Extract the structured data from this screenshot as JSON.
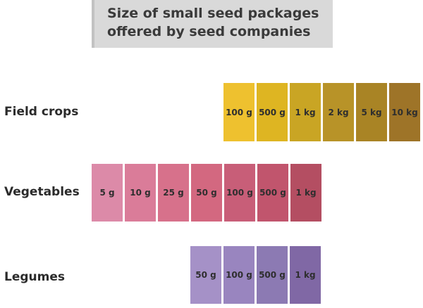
{
  "title": "Size of small seed packages\noffered by seed companies",
  "rows": [
    {
      "label": "Field crops",
      "packages": [
        "100 g",
        "500 g",
        "1 kg",
        "2 kg",
        "5 kg",
        "10 kg"
      ],
      "colors": [
        "#eec12f",
        "#deb522",
        "#c9a524",
        "#b89328",
        "#a98425",
        "#9e7428"
      ]
    },
    {
      "label": "Vegetables",
      "packages": [
        "5 g",
        "10 g",
        "25 g",
        "50 g",
        "100 g",
        "500 g",
        "1 kg"
      ],
      "colors": [
        "#dc8aa8",
        "#da7c99",
        "#d7718b",
        "#d36880",
        "#c85e78",
        "#c1556d",
        "#b44e62"
      ]
    },
    {
      "label": "Legumes",
      "packages": [
        "50 g",
        "100 g",
        "500 g",
        "1 kg"
      ],
      "colors": [
        "#a591c7",
        "#9985bf",
        "#8c7ab3",
        "#8068a5"
      ]
    }
  ]
}
